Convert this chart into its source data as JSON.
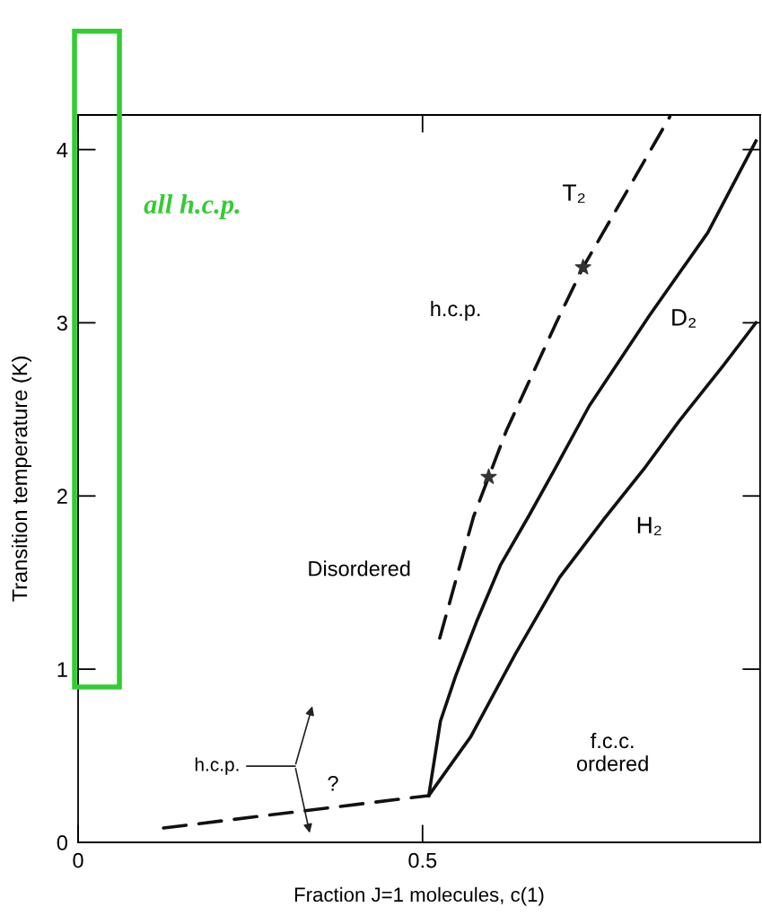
{
  "chart_data": {
    "type": "line",
    "xlabel": "Fraction J=1 molecules, c(1)",
    "ylabel": "Transition temperature (K)",
    "xlim": [
      0,
      0.99
    ],
    "ylim": [
      0,
      4.2
    ],
    "xticks": [
      0,
      0.5
    ],
    "yticks": [
      0,
      1,
      2,
      3,
      4
    ],
    "grid": false,
    "legend": false,
    "series": [
      {
        "color": "#111111",
        "line_style": "dashed",
        "x": [
          0.124,
          0.509
        ],
        "values": [
          0.083,
          0.27
        ]
      },
      {
        "color": "#111111",
        "line_style": "solid",
        "x": [
          0.509,
          0.526,
          0.548,
          0.578,
          0.613,
          0.655,
          0.694,
          0.742,
          0.829,
          0.914,
          0.984
        ],
        "values": [
          0.27,
          0.7,
          0.96,
          1.27,
          1.6,
          1.89,
          2.17,
          2.52,
          3.04,
          3.52,
          4.05
        ]
      },
      {
        "color": "#111111",
        "line_style": "solid",
        "x": [
          0.509,
          0.57,
          0.635,
          0.699,
          0.764,
          0.824,
          0.872,
          0.936,
          0.984
        ],
        "values": [
          0.27,
          0.61,
          1.09,
          1.53,
          1.87,
          2.17,
          2.43,
          2.75,
          3.0
        ]
      },
      {
        "color": "#111111",
        "line_style": "dashed",
        "x": [
          0.525,
          0.574,
          0.596,
          0.622,
          0.694,
          0.733,
          0.775,
          0.859
        ],
        "values": [
          1.18,
          1.88,
          2.11,
          2.38,
          3.0,
          3.32,
          3.61,
          4.19
        ]
      },
      {
        "type": "scatter",
        "color": "#333333",
        "marker": "star",
        "x": [
          0.596,
          0.733
        ],
        "values": [
          2.11,
          3.32
        ]
      }
    ],
    "annotations": [
      {
        "text": "T₂",
        "x": 0.72,
        "y": 3.74
      },
      {
        "text": "D₂",
        "x": 0.879,
        "y": 3.02
      },
      {
        "text": "H₂",
        "x": 0.829,
        "y": 1.82
      },
      "h.c.p.",
      "Disordered",
      "f.c.c.\nordered",
      "h.c.p.",
      "?",
      "all h.c.p."
    ]
  }
}
